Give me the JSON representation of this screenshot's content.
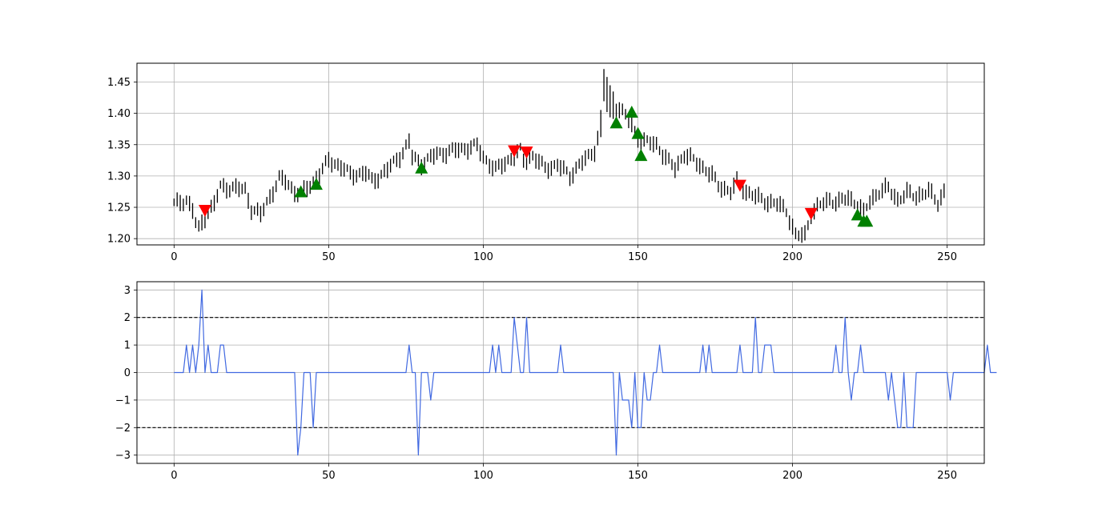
{
  "colors": {
    "price_bar": "#000000",
    "bullish_marker": "#008000",
    "bearish_marker": "#ff0000",
    "indicator_line": "#4169e1",
    "threshold_line": "#000000",
    "grid": "#b0b0b0"
  },
  "chart_data": [
    {
      "type": "ohlc",
      "ylim": [
        1.19,
        1.48
      ],
      "xlim": [
        -12,
        262
      ],
      "grid": true,
      "xticks": [
        0,
        50,
        100,
        150,
        200,
        250
      ],
      "yticks": [
        1.2,
        1.25,
        1.3,
        1.35,
        1.4,
        1.45
      ],
      "xtick_labels": [
        "0",
        "50",
        "100",
        "150",
        "200",
        "250"
      ],
      "ytick_labels": [
        "1.20",
        "1.25",
        "1.30",
        "1.35",
        "1.40",
        "1.45"
      ],
      "anchors": [
        [
          0,
          1.255
        ],
        [
          4,
          1.262
        ],
        [
          6,
          1.245
        ],
        [
          7,
          1.225
        ],
        [
          8,
          1.215
        ],
        [
          10,
          1.235
        ],
        [
          13,
          1.255
        ],
        [
          15,
          1.283
        ],
        [
          20,
          1.28
        ],
        [
          23,
          1.278
        ],
        [
          25,
          1.248
        ],
        [
          28,
          1.238
        ],
        [
          30,
          1.258
        ],
        [
          34,
          1.295
        ],
        [
          36,
          1.292
        ],
        [
          39,
          1.275
        ],
        [
          41,
          1.272
        ],
        [
          44,
          1.285
        ],
        [
          48,
          1.31
        ],
        [
          50,
          1.325
        ],
        [
          54,
          1.315
        ],
        [
          57,
          1.302
        ],
        [
          62,
          1.305
        ],
        [
          64,
          1.292
        ],
        [
          66,
          1.298
        ],
        [
          70,
          1.315
        ],
        [
          74,
          1.338
        ],
        [
          76,
          1.355
        ],
        [
          77,
          1.33
        ],
        [
          80,
          1.32
        ],
        [
          85,
          1.335
        ],
        [
          90,
          1.34
        ],
        [
          98,
          1.348
        ],
        [
          100,
          1.33
        ],
        [
          104,
          1.31
        ],
        [
          108,
          1.325
        ],
        [
          112,
          1.34
        ],
        [
          113,
          1.325
        ],
        [
          116,
          1.332
        ],
        [
          120,
          1.312
        ],
        [
          124,
          1.318
        ],
        [
          128,
          1.3
        ],
        [
          131,
          1.318
        ],
        [
          134,
          1.33
        ],
        [
          136,
          1.342
        ],
        [
          138,
          1.38
        ],
        [
          139,
          1.445
        ],
        [
          141,
          1.415
        ],
        [
          144,
          1.408
        ],
        [
          147,
          1.39
        ],
        [
          150,
          1.36
        ],
        [
          152,
          1.355
        ],
        [
          156,
          1.35
        ],
        [
          160,
          1.322
        ],
        [
          162,
          1.312
        ],
        [
          165,
          1.335
        ],
        [
          168,
          1.325
        ],
        [
          172,
          1.31
        ],
        [
          174,
          1.3
        ],
        [
          176,
          1.285
        ],
        [
          180,
          1.275
        ],
        [
          182,
          1.29
        ],
        [
          185,
          1.275
        ],
        [
          190,
          1.262
        ],
        [
          195,
          1.255
        ],
        [
          198,
          1.245
        ],
        [
          201,
          1.205
        ],
        [
          204,
          1.205
        ],
        [
          206,
          1.24
        ],
        [
          208,
          1.25
        ],
        [
          212,
          1.262
        ],
        [
          215,
          1.258
        ],
        [
          218,
          1.265
        ],
        [
          221,
          1.255
        ],
        [
          223,
          1.24
        ],
        [
          225,
          1.26
        ],
        [
          228,
          1.275
        ],
        [
          231,
          1.28
        ],
        [
          234,
          1.262
        ],
        [
          237,
          1.272
        ],
        [
          240,
          1.268
        ],
        [
          244,
          1.275
        ],
        [
          247,
          1.258
        ],
        [
          249,
          1.275
        ]
      ],
      "bullish_markers": [
        [
          41,
          1.275
        ],
        [
          46,
          1.287
        ],
        [
          80,
          1.313
        ],
        [
          143,
          1.385
        ],
        [
          148,
          1.402
        ],
        [
          150,
          1.368
        ],
        [
          151,
          1.333
        ],
        [
          221,
          1.238
        ],
        [
          223,
          1.228
        ],
        [
          224,
          1.228
        ]
      ],
      "bearish_markers": [
        [
          10,
          1.245
        ],
        [
          110,
          1.34
        ],
        [
          114,
          1.338
        ],
        [
          183,
          1.285
        ],
        [
          206,
          1.24
        ]
      ]
    },
    {
      "type": "line",
      "ylim": [
        -3.3,
        3.3
      ],
      "xlim": [
        -12,
        262
      ],
      "grid": true,
      "xticks": [
        0,
        50,
        100,
        150,
        200,
        250
      ],
      "yticks": [
        -3,
        -2,
        -1,
        0,
        1,
        2,
        3
      ],
      "xtick_labels": [
        "0",
        "50",
        "100",
        "150",
        "200",
        "250"
      ],
      "ytick_labels": [
        "−3",
        "−2",
        "−1",
        "0",
        "1",
        "2",
        "3"
      ],
      "thresholds": [
        2,
        -2
      ],
      "series": [
        {
          "values": [
            0,
            0,
            0,
            0,
            1,
            0,
            1,
            0,
            1,
            3,
            0,
            1,
            0,
            0,
            0,
            1,
            1,
            0,
            0,
            0,
            0,
            0,
            0,
            0,
            0,
            0,
            0,
            0,
            0,
            0,
            0,
            0,
            0,
            0,
            0,
            0,
            0,
            0,
            0,
            0,
            -3,
            -2,
            0,
            0,
            0,
            -2,
            0,
            0,
            0,
            0,
            0,
            0,
            0,
            0,
            0,
            0,
            0,
            0,
            0,
            0,
            0,
            0,
            0,
            0,
            0,
            0,
            0,
            0,
            0,
            0,
            0,
            0,
            0,
            0,
            0,
            0,
            1,
            0,
            0,
            -3,
            0,
            0,
            0,
            -1,
            0,
            0,
            0,
            0,
            0,
            0,
            0,
            0,
            0,
            0,
            0,
            0,
            0,
            0,
            0,
            0,
            0,
            0,
            0,
            1,
            0,
            1,
            0,
            0,
            0,
            0,
            2,
            1,
            0,
            0,
            2,
            0,
            0,
            0,
            0,
            0,
            0,
            0,
            0,
            0,
            0,
            1,
            0,
            0,
            0,
            0,
            0,
            0,
            0,
            0,
            0,
            0,
            0,
            0,
            0,
            0,
            0,
            0,
            0,
            -3,
            0,
            -1,
            -1,
            -1,
            -2,
            0,
            -2,
            -2,
            0,
            -1,
            -1,
            0,
            0,
            1,
            0,
            0,
            0,
            0,
            0,
            0,
            0,
            0,
            0,
            0,
            0,
            0,
            0,
            1,
            0,
            1,
            0,
            0,
            0,
            0,
            0,
            0,
            0,
            0,
            0,
            1,
            0,
            0,
            0,
            0,
            2,
            0,
            0,
            1,
            1,
            1,
            0,
            0,
            0,
            0,
            0,
            0,
            0,
            0,
            0,
            0,
            0,
            0,
            0,
            0,
            0,
            0,
            0,
            0,
            0,
            0,
            1,
            0,
            0,
            2,
            0,
            -1,
            0,
            0,
            1,
            0,
            0,
            0,
            0,
            0,
            0,
            0,
            0,
            -1,
            0,
            -1,
            -2,
            -2,
            0,
            -2,
            -2,
            -2,
            0,
            0,
            0,
            0,
            0,
            0,
            0,
            0,
            0,
            0,
            0,
            -1,
            0,
            0,
            0,
            0,
            0,
            0,
            0,
            0,
            0,
            0,
            0,
            1,
            0,
            0,
            0
          ]
        }
      ]
    }
  ]
}
